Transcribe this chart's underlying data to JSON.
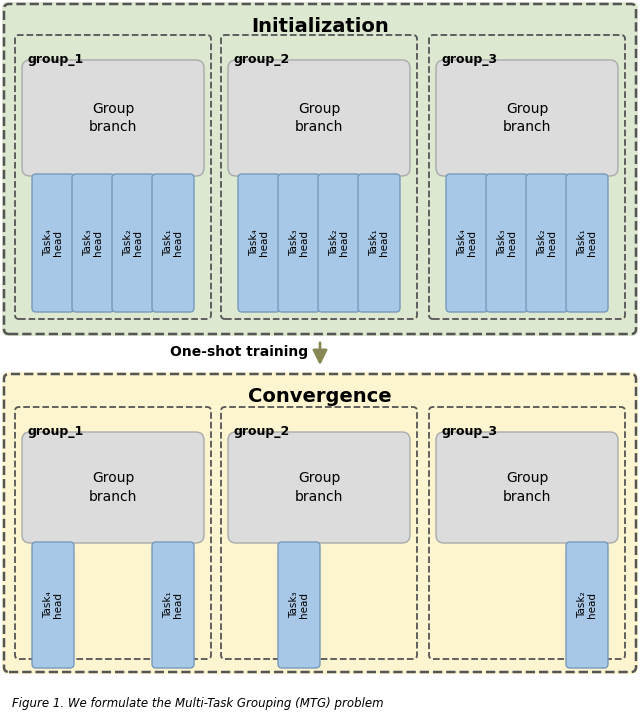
{
  "title_init": "Initialization",
  "title_conv": "Convergence",
  "arrow_label": "One-shot training",
  "caption": "Figure 1. We formulate the Multi-Task Grouping (MTG) problem",
  "init_bg": "#dde8d0",
  "conv_bg": "#fdf5d0",
  "group_init_bg": "#dde8d0",
  "group_conv_bg": "#fdf5d0",
  "branch_bg": "#dcdcdc",
  "task_head_color": "#a8c8e8",
  "task_head_edge": "#7799bb",
  "group_labels": [
    "group_1",
    "group_2",
    "group_3"
  ],
  "init_task_labels": [
    [
      "Task₄\nhead",
      "Task₃\nhead",
      "Task₂\nhead",
      "Task₁\nhead"
    ],
    [
      "Task₄\nhead",
      "Task₃\nhead",
      "Task₂\nhead",
      "Task₁\nhead"
    ],
    [
      "Task₄\nhead",
      "Task₃\nhead",
      "Task₂\nhead",
      "Task₁\nhead"
    ]
  ],
  "conv_task_labels": [
    [
      "Task₄\nhead",
      "Task₁\nhead"
    ],
    [
      "Task₃\nhead"
    ],
    [
      "Task₂\nhead"
    ]
  ],
  "conv_task_slot_positions": [
    [
      0,
      3
    ],
    [
      1
    ],
    [
      3
    ]
  ]
}
